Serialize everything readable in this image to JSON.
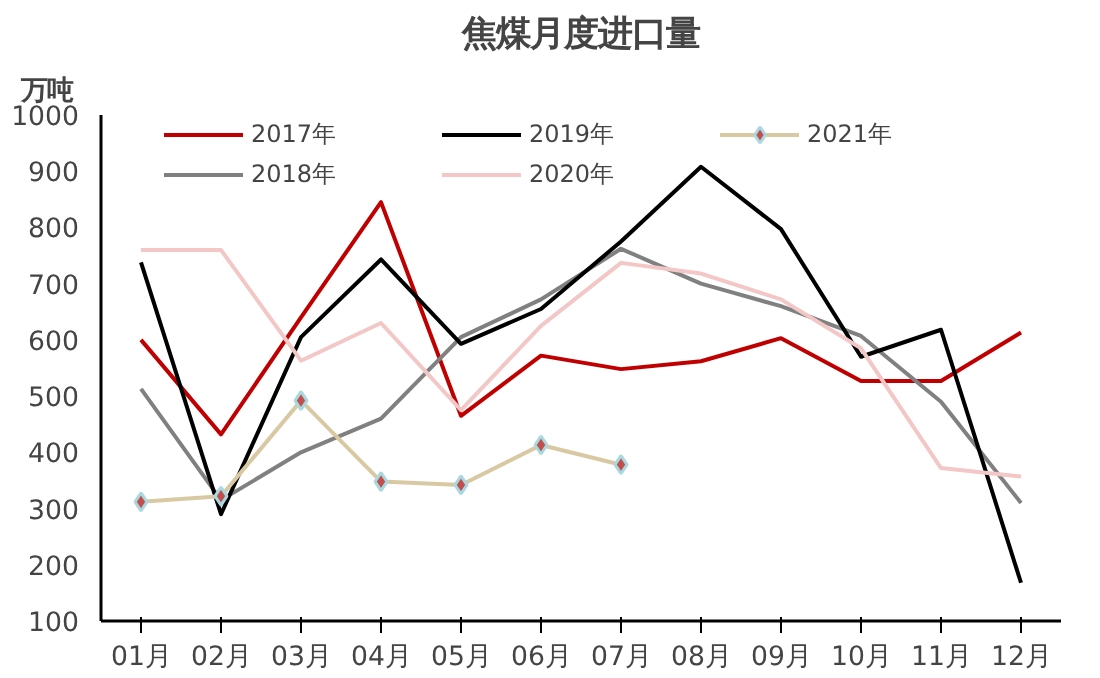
{
  "chart_data": {
    "type": "line",
    "title": "焦煤月度进口量",
    "ylabel": "万吨",
    "categories": [
      "01月",
      "02月",
      "03月",
      "04月",
      "05月",
      "06月",
      "07月",
      "08月",
      "09月",
      "10月",
      "11月",
      "12月"
    ],
    "ylim": [
      100,
      1000
    ],
    "yticks": [
      100,
      200,
      300,
      400,
      500,
      600,
      700,
      800,
      900,
      1000
    ],
    "grid": false,
    "legend": "top",
    "line_style": "solid",
    "series": [
      {
        "name": "2017年",
        "color": "#c00000",
        "values": [
          600,
          432,
          640,
          845,
          465,
          572,
          548,
          562,
          603,
          527,
          527,
          613
        ]
      },
      {
        "name": "2018年",
        "color": "#808080",
        "values": [
          513,
          315,
          400,
          460,
          605,
          672,
          762,
          700,
          660,
          607,
          490,
          310
        ]
      },
      {
        "name": "2019年",
        "color": "#000000",
        "values": [
          738,
          290,
          605,
          743,
          593,
          655,
          775,
          908,
          797,
          570,
          618,
          168
        ]
      },
      {
        "name": "2020年",
        "color": "#f4c7c7",
        "values": [
          760,
          760,
          563,
          630,
          475,
          625,
          737,
          718,
          672,
          585,
          372,
          357
        ]
      },
      {
        "name": "2021年",
        "color": "#d9c9a3",
        "marker": "diamond",
        "values": [
          312,
          322,
          492,
          348,
          342,
          413,
          378,
          null,
          null,
          null,
          null,
          null
        ]
      }
    ]
  }
}
